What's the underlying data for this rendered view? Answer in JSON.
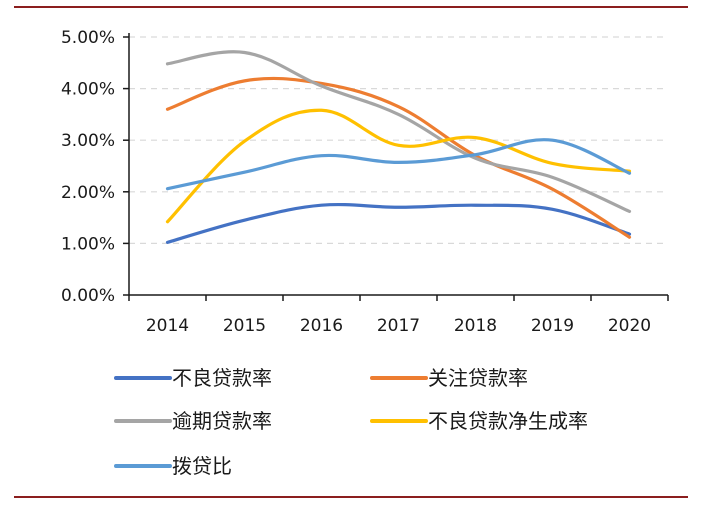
{
  "chart_data": {
    "type": "line",
    "categories": [
      "2014",
      "2015",
      "2016",
      "2017",
      "2018",
      "2019",
      "2020"
    ],
    "ylim": [
      0,
      5
    ],
    "yticks": [
      "0.00%",
      "1.00%",
      "2.00%",
      "3.00%",
      "4.00%",
      "5.00%"
    ],
    "grid": true,
    "legend_position": "bottom",
    "series": [
      {
        "name": "不良贷款率",
        "color": "#4472C4",
        "values": [
          1.02,
          1.45,
          1.74,
          1.7,
          1.74,
          1.66,
          1.18
        ]
      },
      {
        "name": "关注贷款率",
        "color": "#ED7D31",
        "values": [
          3.6,
          4.15,
          4.1,
          3.65,
          2.7,
          2.05,
          1.12
        ]
      },
      {
        "name": "逾期贷款率",
        "color": "#A5A5A5",
        "values": [
          4.48,
          4.7,
          4.05,
          3.5,
          2.65,
          2.28,
          1.62
        ]
      },
      {
        "name": "不良贷款净生成率",
        "color": "#FFC000",
        "values": [
          1.42,
          2.98,
          3.58,
          2.9,
          3.05,
          2.55,
          2.4
        ]
      },
      {
        "name": "拨贷比",
        "color": "#5B9BD5",
        "values": [
          2.06,
          2.38,
          2.7,
          2.57,
          2.72,
          3.0,
          2.36
        ]
      }
    ]
  }
}
